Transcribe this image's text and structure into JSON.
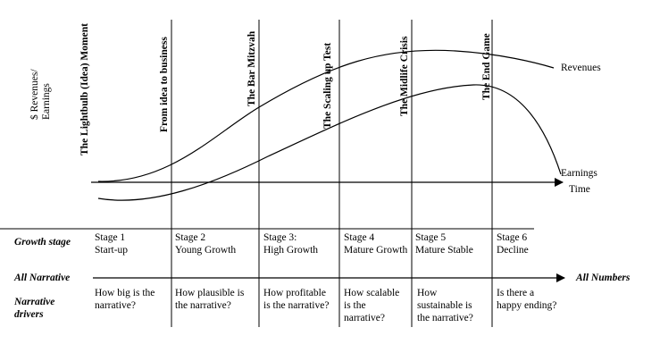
{
  "axes": {
    "y_label": "$ Revenues/\nEarnings",
    "x_label": "Time"
  },
  "curves": {
    "revenues_label": "Revenues",
    "earnings_label": "Earnings"
  },
  "phase_titles": [
    "The Lightbulb (Idea) Moment",
    "From idea to business",
    "The Bar Mitzvah",
    "The Scaling up Test",
    "The Midlife Crisis",
    "The End Game"
  ],
  "row_labels": {
    "growth_stage": "Growth stage",
    "all_narrative": "All Narrative",
    "all_numbers": "All Numbers",
    "narrative_drivers": "Narrative\ndrivers"
  },
  "stages": [
    {
      "name": "Stage 1",
      "desc": "Start-up",
      "driver": "How big is the\nnarrative?"
    },
    {
      "name": "Stage 2",
      "desc": "Young Growth",
      "driver": "How plausible is\nthe narrative?"
    },
    {
      "name": "Stage 3:",
      "desc": "High Growth",
      "driver": "How profitable\nis the narrative?"
    },
    {
      "name": "Stage 4",
      "desc": "Mature Growth",
      "driver": "How scalable\nis the\nnarrative?"
    },
    {
      "name": "Stage 5",
      "desc": "Mature Stable",
      "driver": "How\nsustainable is\nthe narrative?"
    },
    {
      "name": "Stage 6",
      "desc": "Decline",
      "driver": "Is there a\nhappy ending?"
    }
  ]
}
